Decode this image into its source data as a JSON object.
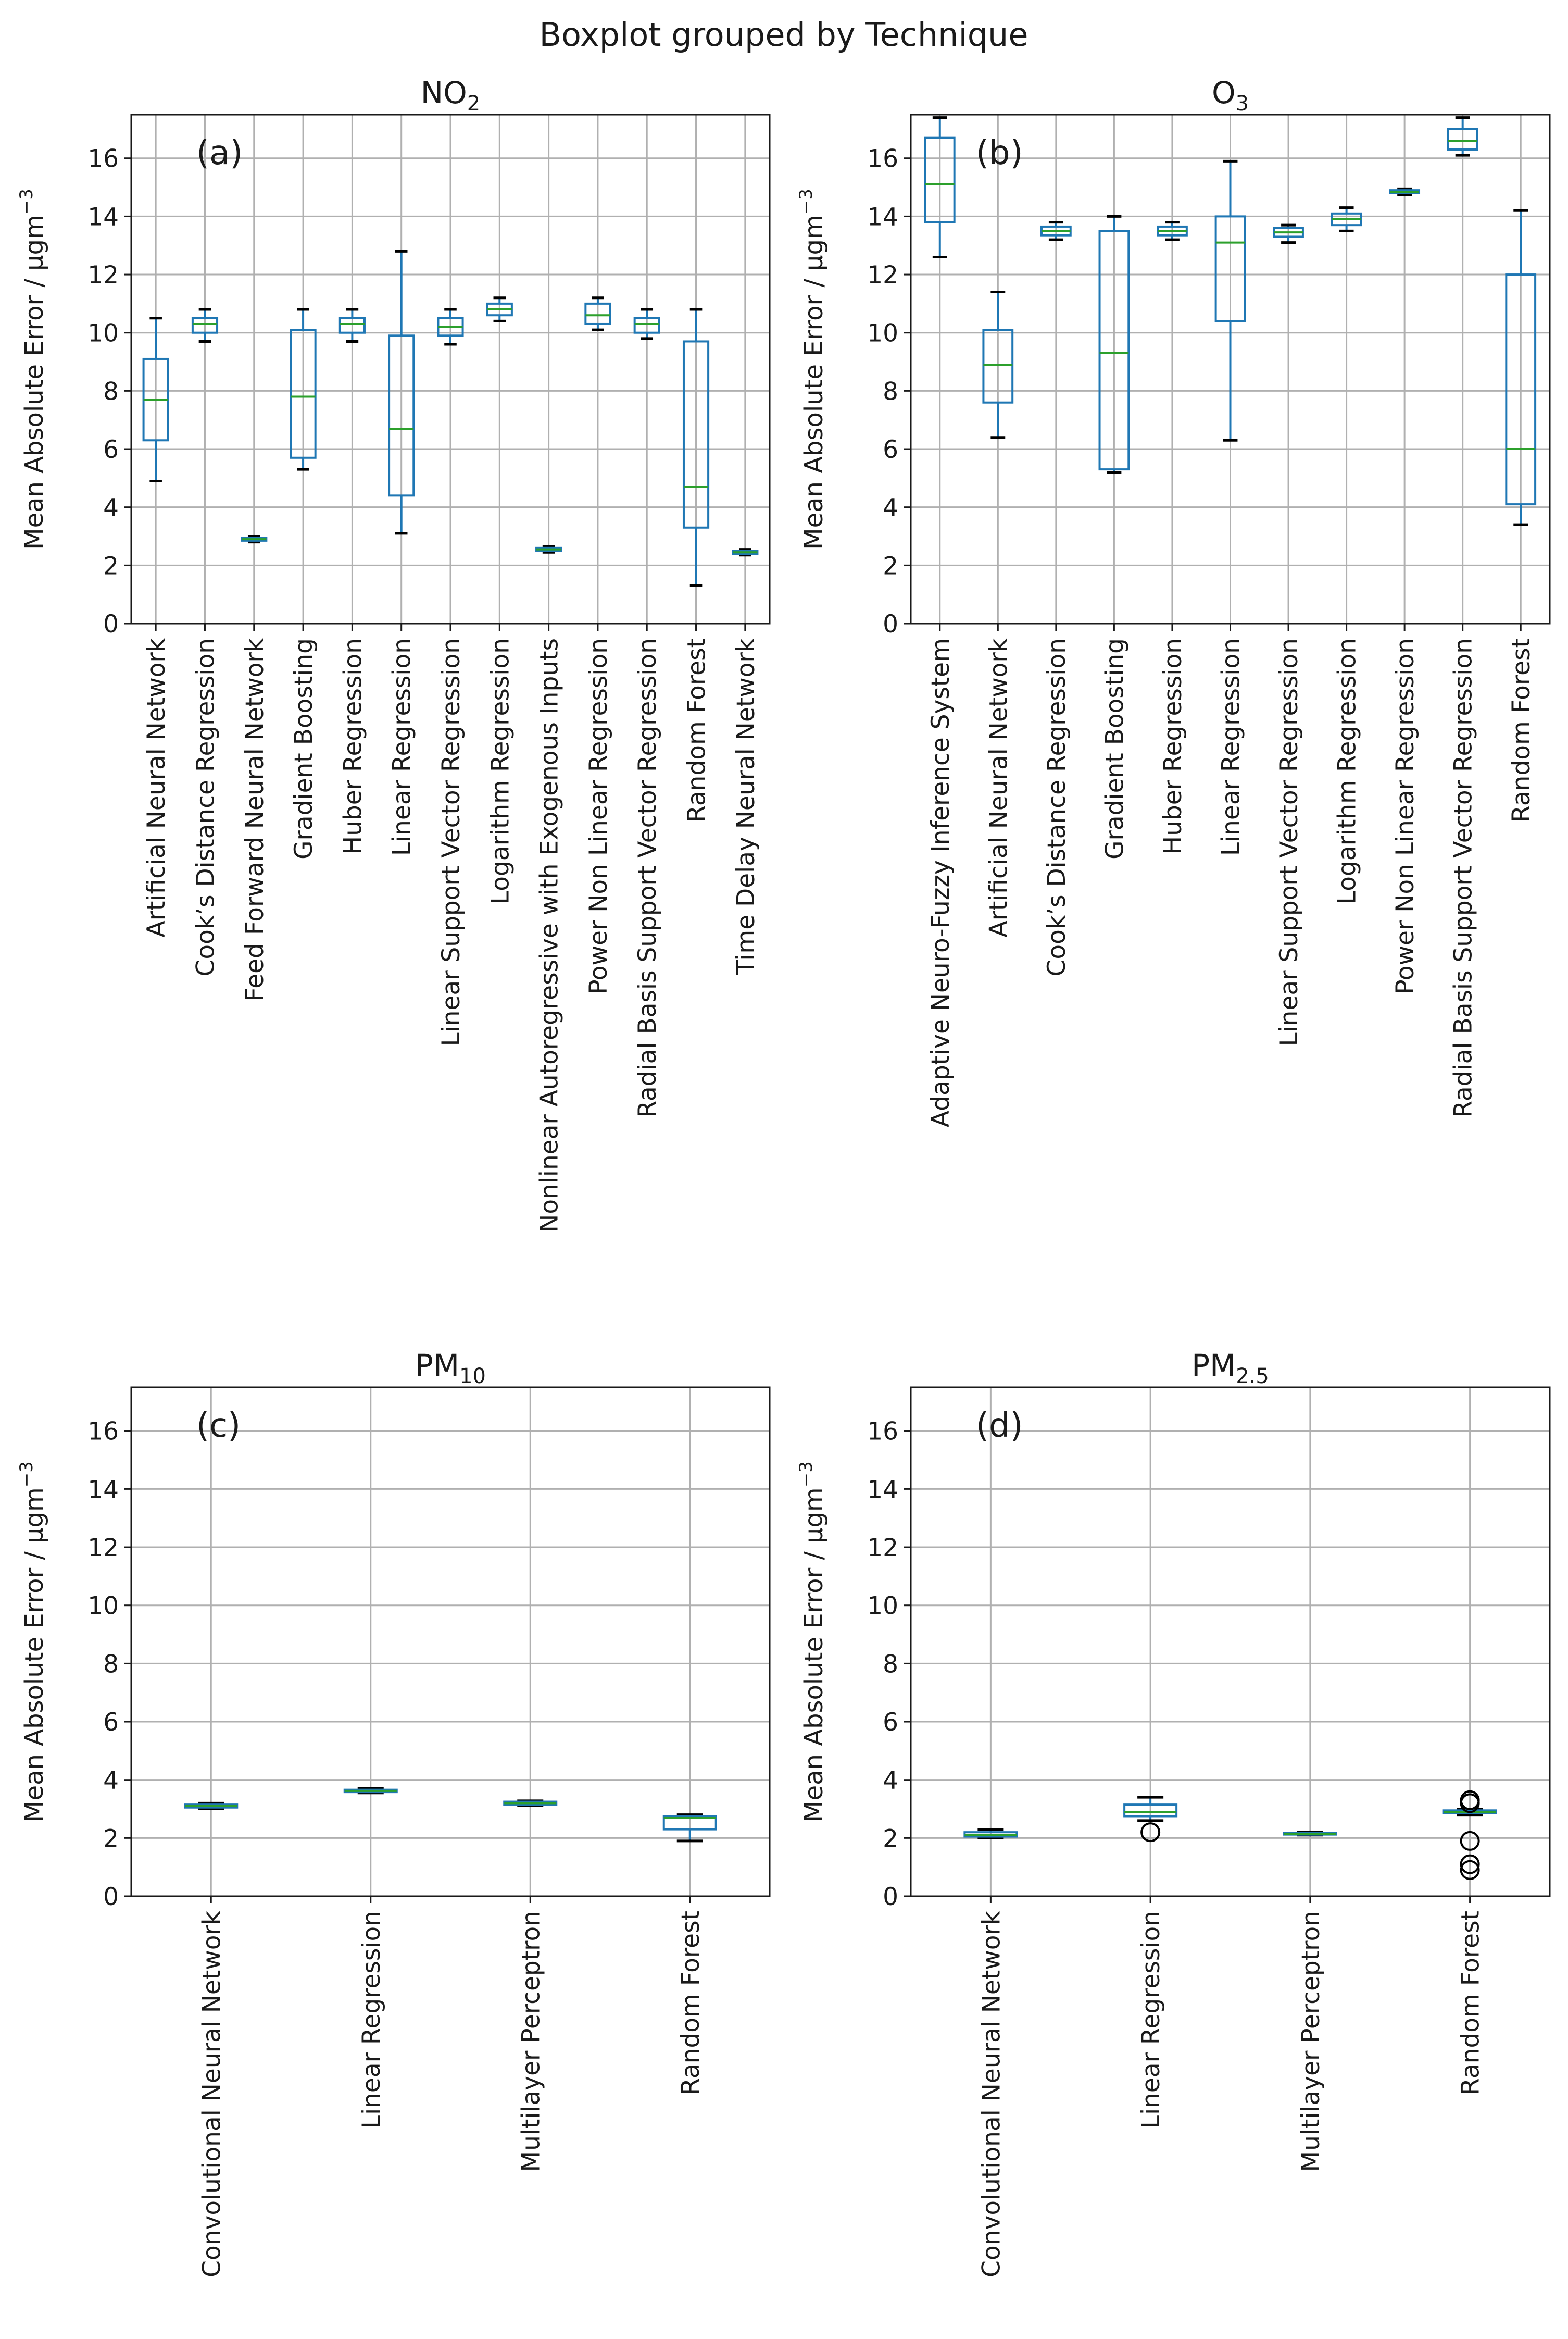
{
  "figure": {
    "suptitle": "Boxplot grouped by Technique"
  },
  "colors": {
    "box": "#1f77b4",
    "median": "#2ca02c",
    "grid": "#b0b0b0",
    "axis": "#1a1a1a"
  },
  "chart_data": [
    {
      "id": "a",
      "type": "boxplot",
      "title_main": "NO",
      "title_sub": "2",
      "panel_label": "(a)",
      "ylabel": "Mean Absolute Error / μgm",
      "ylabel_sup": "−3",
      "ylim": [
        0,
        17.5
      ],
      "yticks": [
        0,
        2,
        4,
        6,
        8,
        10,
        12,
        14,
        16
      ],
      "categories": [
        "Artificial Neural Network",
        "Cook’s Distance Regression",
        "Feed Forward Neural Network",
        "Gradient Boosting",
        "Huber Regression",
        "Linear Regression",
        "Linear Support Vector Regression",
        "Logarithm Regression",
        "Nonlinear Autoregressive with Exogenous Inputs",
        "Power Non Linear Regression",
        "Radial Basis Support Vector Regression",
        "Random Forest",
        "Time Delay Neural Network"
      ],
      "boxes": [
        {
          "whislo": 4.9,
          "q1": 6.3,
          "med": 7.7,
          "q3": 9.1,
          "whishi": 10.5
        },
        {
          "whislo": 9.7,
          "q1": 10.0,
          "med": 10.3,
          "q3": 10.5,
          "whishi": 10.8
        },
        {
          "whislo": 2.8,
          "q1": 2.85,
          "med": 2.9,
          "q3": 2.95,
          "whishi": 3.0
        },
        {
          "whislo": 5.3,
          "q1": 5.7,
          "med": 7.8,
          "q3": 10.1,
          "whishi": 10.8
        },
        {
          "whislo": 9.7,
          "q1": 10.0,
          "med": 10.3,
          "q3": 10.5,
          "whishi": 10.8
        },
        {
          "whislo": 3.1,
          "q1": 4.4,
          "med": 6.7,
          "q3": 9.9,
          "whishi": 12.8
        },
        {
          "whislo": 9.6,
          "q1": 9.9,
          "med": 10.2,
          "q3": 10.5,
          "whishi": 10.8
        },
        {
          "whislo": 10.4,
          "q1": 10.6,
          "med": 10.8,
          "q3": 11.0,
          "whishi": 11.2
        },
        {
          "whislo": 2.45,
          "q1": 2.5,
          "med": 2.55,
          "q3": 2.6,
          "whishi": 2.65
        },
        {
          "whislo": 10.1,
          "q1": 10.3,
          "med": 10.6,
          "q3": 11.0,
          "whishi": 11.2
        },
        {
          "whislo": 9.8,
          "q1": 10.0,
          "med": 10.3,
          "q3": 10.5,
          "whishi": 10.8
        },
        {
          "whislo": 1.3,
          "q1": 3.3,
          "med": 4.7,
          "q3": 9.7,
          "whishi": 10.8
        },
        {
          "whislo": 2.35,
          "q1": 2.4,
          "med": 2.45,
          "q3": 2.5,
          "whishi": 2.55
        }
      ]
    },
    {
      "id": "b",
      "type": "boxplot",
      "title_main": "O",
      "title_sub": "3",
      "panel_label": "(b)",
      "ylabel": "Mean Absolute Error / μgm",
      "ylabel_sup": "−3",
      "ylim": [
        0,
        17.5
      ],
      "yticks": [
        0,
        2,
        4,
        6,
        8,
        10,
        12,
        14,
        16
      ],
      "categories": [
        "Adaptive Neuro-Fuzzy Inference System",
        "Artificial Neural Network",
        "Cook’s Distance Regression",
        "Gradient Boosting",
        "Huber Regression",
        "Linear Regression",
        "Linear Support Vector Regression",
        "Logarithm Regression",
        "Power Non Linear Regression",
        "Radial Basis Support Vector Regression",
        "Random Forest"
      ],
      "boxes": [
        {
          "whislo": 12.6,
          "q1": 13.8,
          "med": 15.1,
          "q3": 16.7,
          "whishi": 17.4
        },
        {
          "whislo": 6.4,
          "q1": 7.6,
          "med": 8.9,
          "q3": 10.1,
          "whishi": 11.4
        },
        {
          "whislo": 13.2,
          "q1": 13.35,
          "med": 13.5,
          "q3": 13.65,
          "whishi": 13.8
        },
        {
          "whislo": 5.2,
          "q1": 5.3,
          "med": 9.3,
          "q3": 13.5,
          "whishi": 14.0
        },
        {
          "whislo": 13.2,
          "q1": 13.35,
          "med": 13.5,
          "q3": 13.65,
          "whishi": 13.8
        },
        {
          "whislo": 6.3,
          "q1": 10.4,
          "med": 13.1,
          "q3": 14.0,
          "whishi": 15.9
        },
        {
          "whislo": 13.1,
          "q1": 13.3,
          "med": 13.45,
          "q3": 13.6,
          "whishi": 13.7
        },
        {
          "whislo": 13.5,
          "q1": 13.7,
          "med": 13.9,
          "q3": 14.1,
          "whishi": 14.3
        },
        {
          "whislo": 14.75,
          "q1": 14.8,
          "med": 14.85,
          "q3": 14.9,
          "whishi": 14.95
        },
        {
          "whislo": 16.1,
          "q1": 16.3,
          "med": 16.6,
          "q3": 17.0,
          "whishi": 17.4
        },
        {
          "whislo": 3.4,
          "q1": 4.1,
          "med": 6.0,
          "q3": 12.0,
          "whishi": 14.2
        }
      ]
    },
    {
      "id": "c",
      "type": "boxplot",
      "title_main": "PM",
      "title_sub": "10",
      "panel_label": "(c)",
      "ylabel": "Mean Absolute Error / μgm",
      "ylabel_sup": "−3",
      "ylim": [
        0,
        17.5
      ],
      "yticks": [
        0,
        2,
        4,
        6,
        8,
        10,
        12,
        14,
        16
      ],
      "categories": [
        "Convolutional Neural Network",
        "Linear Regression",
        "Multilayer Perceptron",
        "Random Forest"
      ],
      "boxes": [
        {
          "whislo": 3.0,
          "q1": 3.05,
          "med": 3.1,
          "q3": 3.15,
          "whishi": 3.2
        },
        {
          "whislo": 3.55,
          "q1": 3.58,
          "med": 3.62,
          "q3": 3.66,
          "whishi": 3.7
        },
        {
          "whislo": 3.12,
          "q1": 3.15,
          "med": 3.2,
          "q3": 3.25,
          "whishi": 3.28
        },
        {
          "whislo": 1.9,
          "q1": 2.3,
          "med": 2.7,
          "q3": 2.75,
          "whishi": 2.8
        }
      ]
    },
    {
      "id": "d",
      "type": "boxplot",
      "title_main": "PM",
      "title_sub": "2.5",
      "panel_label": "(d)",
      "ylabel": "Mean Absolute Error / μgm",
      "ylabel_sup": "−3",
      "ylim": [
        0,
        17.5
      ],
      "yticks": [
        0,
        2,
        4,
        6,
        8,
        10,
        12,
        14,
        16
      ],
      "categories": [
        "Convolutional Neural Network",
        "Linear Regression",
        "Multilayer Perceptron",
        "Random Forest"
      ],
      "boxes": [
        {
          "whislo": 2.0,
          "q1": 2.05,
          "med": 2.1,
          "q3": 2.2,
          "whishi": 2.3,
          "fliers": []
        },
        {
          "whislo": 2.6,
          "q1": 2.75,
          "med": 2.9,
          "q3": 3.15,
          "whishi": 3.4,
          "fliers": [
            2.2
          ]
        },
        {
          "whislo": 2.1,
          "q1": 2.12,
          "med": 2.15,
          "q3": 2.18,
          "whishi": 2.2,
          "fliers": []
        },
        {
          "whislo": 2.8,
          "q1": 2.85,
          "med": 2.9,
          "q3": 2.95,
          "whishi": 3.0,
          "fliers": [
            3.3,
            3.2,
            1.9,
            1.1,
            0.9
          ]
        }
      ]
    }
  ]
}
